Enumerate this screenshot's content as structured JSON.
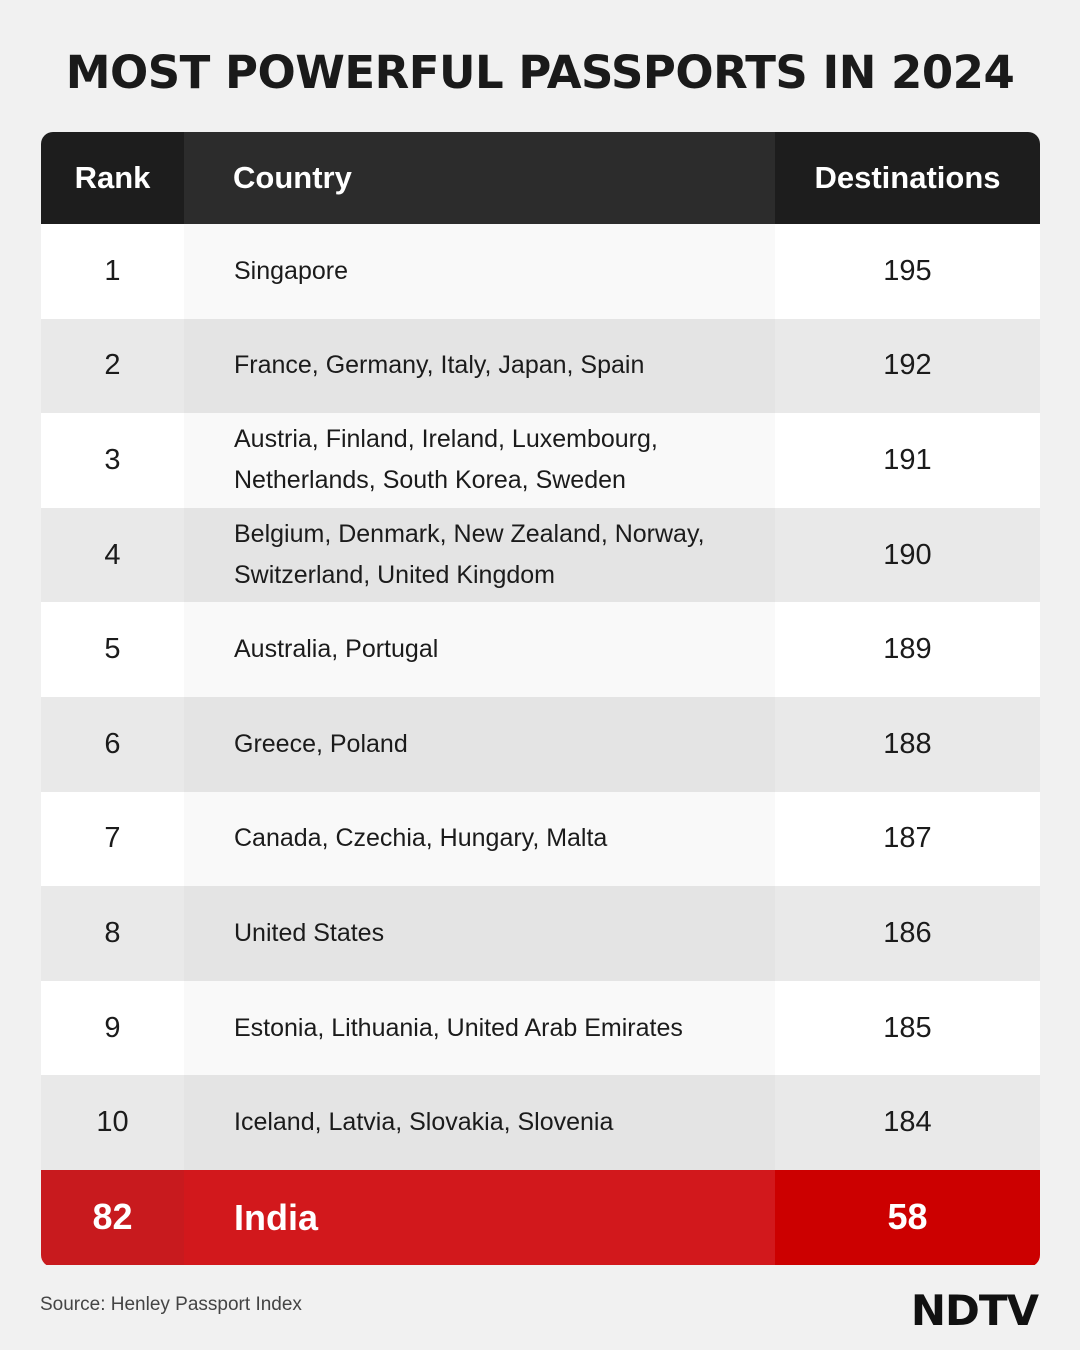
{
  "title": "MOST POWERFUL PASSPORTS IN 2024",
  "chart_data": {
    "type": "table",
    "columns": [
      "Rank",
      "Country",
      "Destinations"
    ],
    "rows": [
      {
        "rank": "1",
        "country": "Singapore",
        "destinations": "195"
      },
      {
        "rank": "2",
        "country": "France, Germany, Italy, Japan, Spain",
        "destinations": "192"
      },
      {
        "rank": "3",
        "country": "Austria, Finland, Ireland, Luxembourg, Netherlands, South Korea, Sweden",
        "destinations": "191"
      },
      {
        "rank": "4",
        "country": "Belgium, Denmark, New Zealand, Norway, Switzerland, United Kingdom",
        "destinations": "190"
      },
      {
        "rank": "5",
        "country": "Australia, Portugal",
        "destinations": "189"
      },
      {
        "rank": "6",
        "country": "Greece, Poland",
        "destinations": "188"
      },
      {
        "rank": "7",
        "country": "Canada, Czechia, Hungary, Malta",
        "destinations": "187"
      },
      {
        "rank": "8",
        "country": "United States",
        "destinations": "186"
      },
      {
        "rank": "9",
        "country": "Estonia, Lithuania, United Arab Emirates",
        "destinations": "185"
      },
      {
        "rank": "10",
        "country": "Iceland, Latvia, Slovakia, Slovenia",
        "destinations": "184"
      }
    ],
    "highlight": {
      "rank": "82",
      "country": "India",
      "destinations": "58"
    },
    "colors": {
      "header": "#1d1d1d",
      "highlight": "#cc0000",
      "row_alt": "#e9e9e9"
    }
  },
  "source": "Source: Henley Passport Index",
  "logo": "NDTV"
}
